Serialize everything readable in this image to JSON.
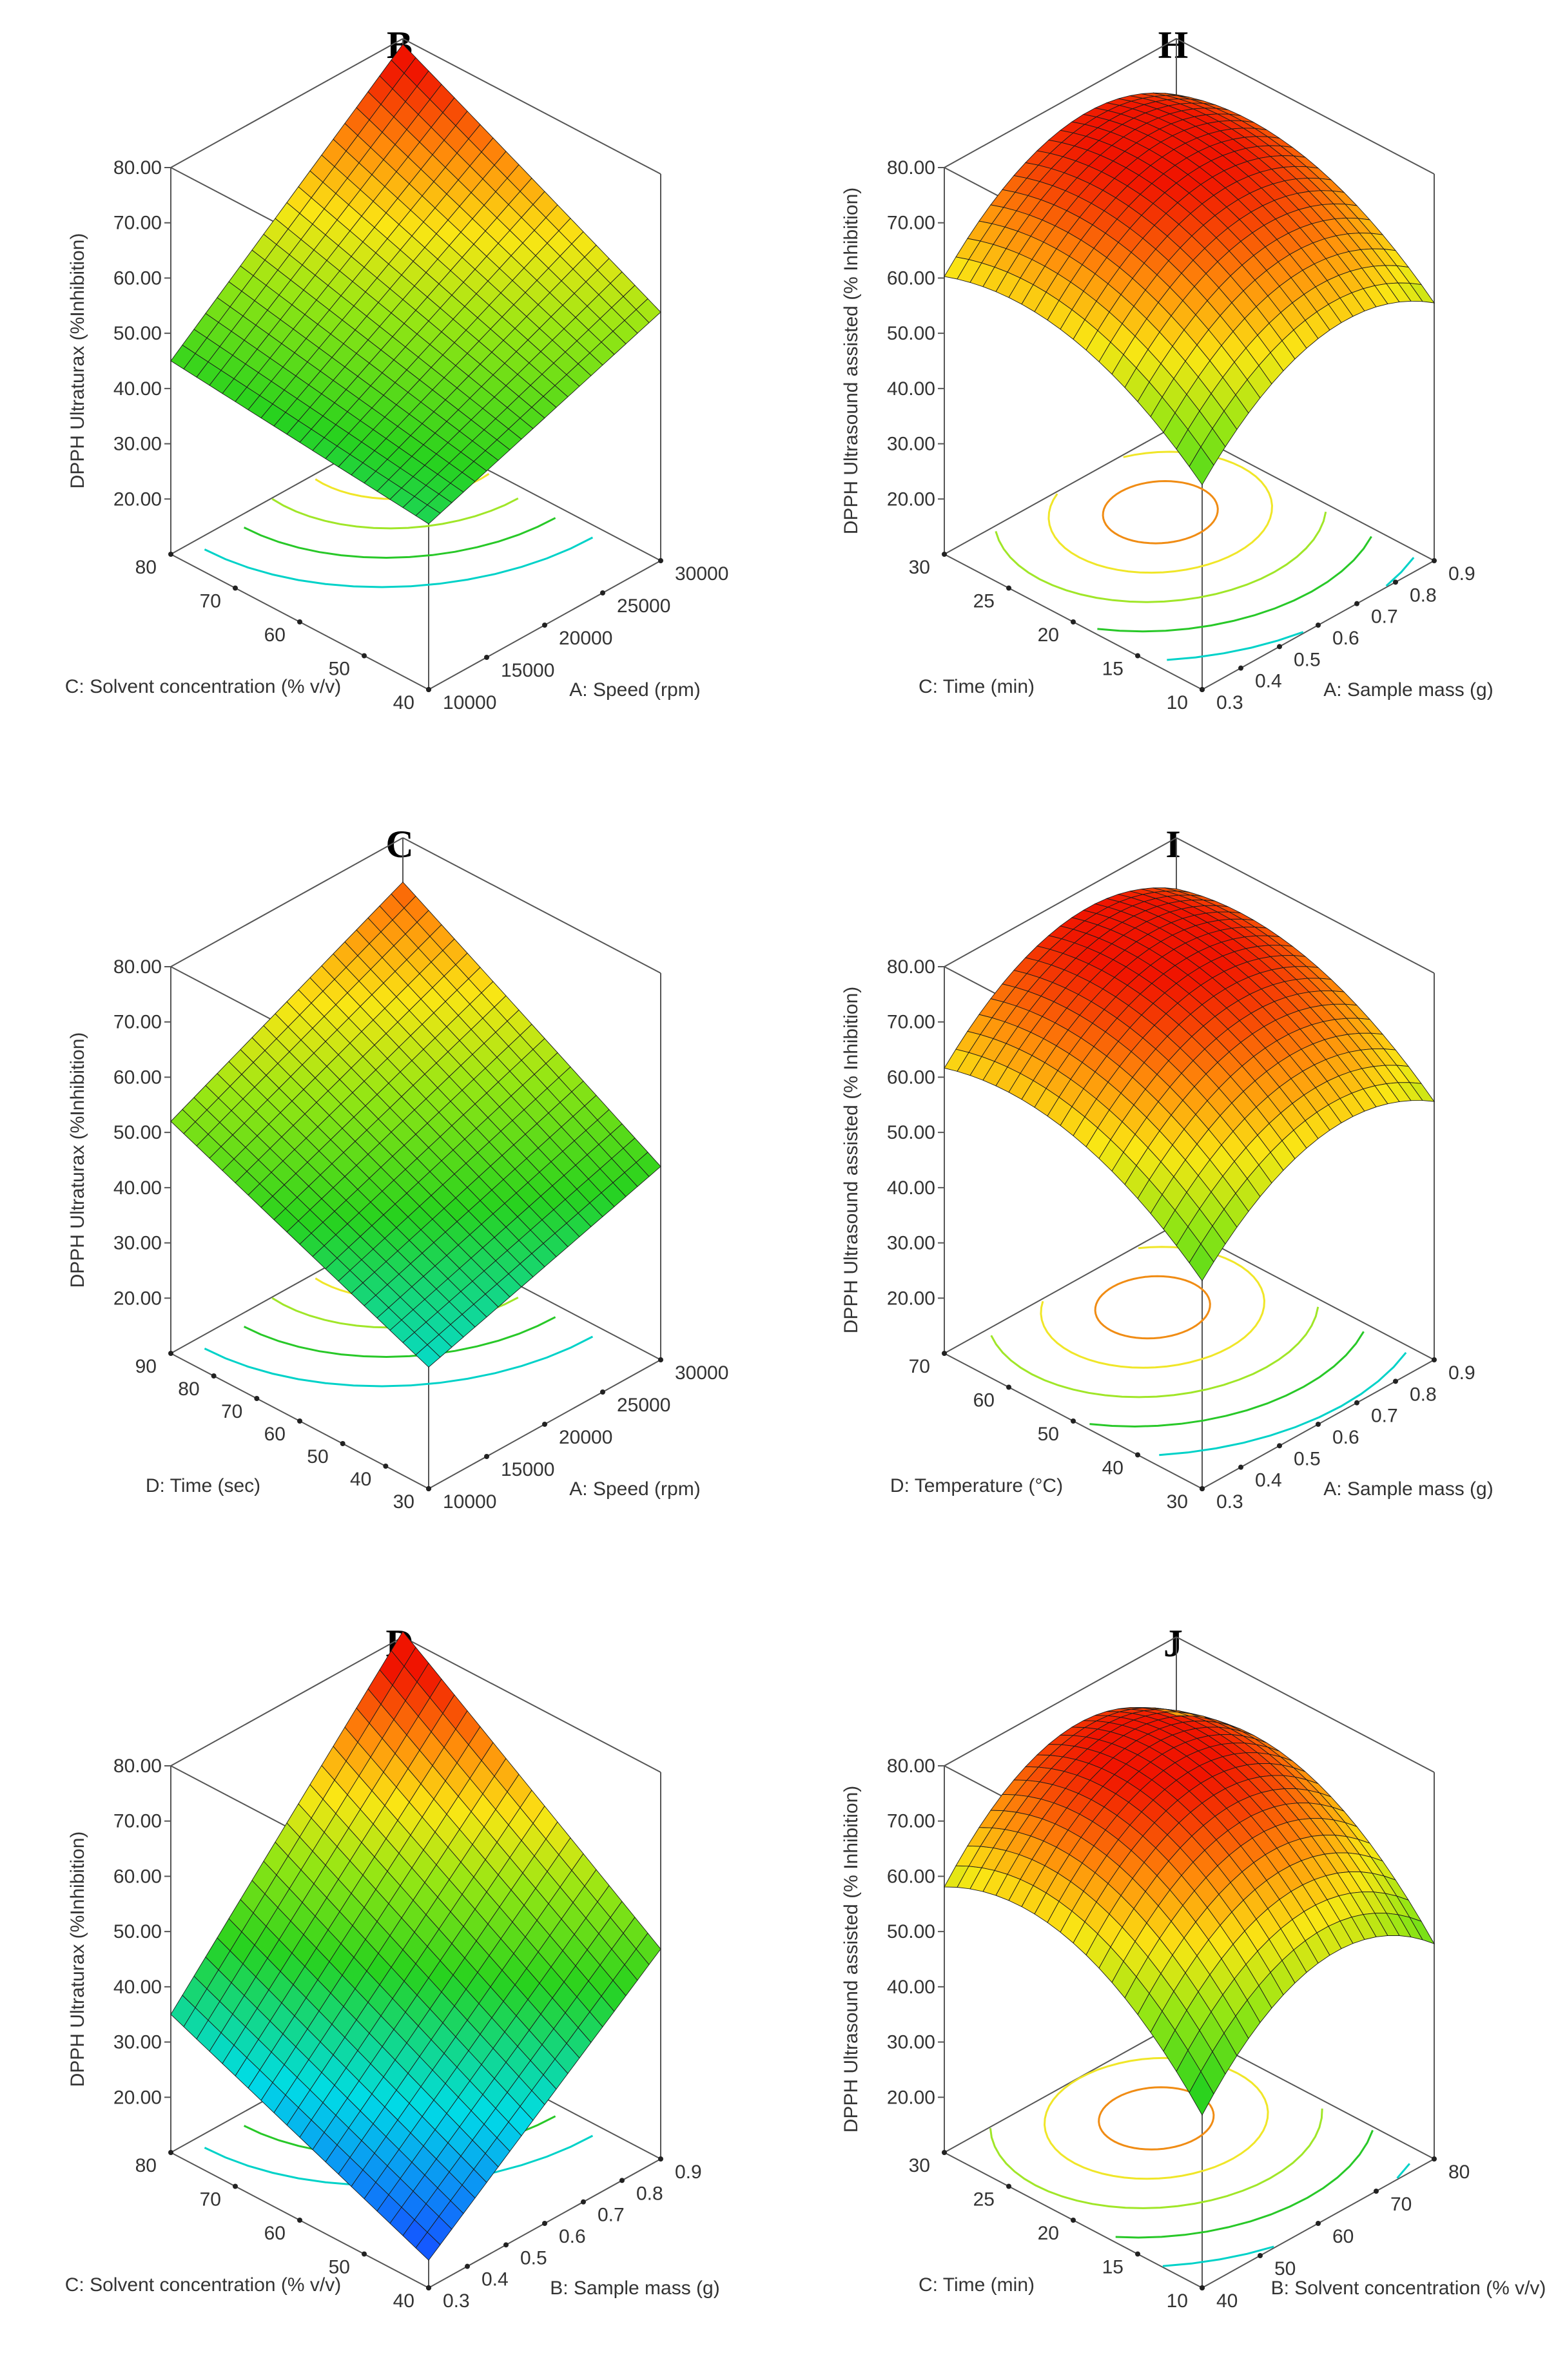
{
  "chart_data": [
    {
      "type": "surface3d",
      "panel": "B",
      "zlabel": "DPPH Ultraturax (%Inhibition)",
      "zticks": [
        "80.00",
        "70.00",
        "60.00",
        "50.00",
        "40.00",
        "30.00",
        "20.00"
      ],
      "xlabel": "A: Speed (rpm)",
      "xticks": [
        "10000",
        "15000",
        "20000",
        "25000",
        "30000"
      ],
      "ylabel": "C: Solvent concentration (% v/v)",
      "yticks": [
        "40",
        "50",
        "60",
        "70",
        "80"
      ],
      "surface": {
        "kind": "plane",
        "corner_values": {
          "x_min_y_min": 40,
          "x_max_y_min": 55,
          "x_min_y_max": 45,
          "x_max_y_max": 75
        },
        "curvature": 4
      },
      "zrange": [
        10,
        80
      ]
    },
    {
      "type": "surface3d",
      "panel": "H",
      "zlabel": "DPPH Ultrasound assisted (% Inhibition)",
      "zticks": [
        "80.00",
        "70.00",
        "60.00",
        "50.00",
        "40.00",
        "30.00",
        "20.00"
      ],
      "xlabel": "A: Sample mass (g)",
      "xticks": [
        "0.3",
        "0.4",
        "0.5",
        "0.6",
        "0.7",
        "0.8",
        "0.9"
      ],
      "ylabel": "C: Time (min)",
      "yticks": [
        "10",
        "15",
        "20",
        "25",
        "30"
      ],
      "surface": {
        "kind": "quadratic",
        "peak": 78,
        "peak_at": [
          0.62,
          0.72
        ],
        "falloff_x": 40,
        "falloff_y": 30
      },
      "zrange": [
        10,
        80
      ]
    },
    {
      "type": "surface3d",
      "panel": "C",
      "zlabel": "DPPH Ultraturax (%Inhibition)",
      "zticks": [
        "80.00",
        "70.00",
        "60.00",
        "50.00",
        "40.00",
        "30.00",
        "20.00"
      ],
      "xlabel": "A: Speed (rpm)",
      "xticks": [
        "10000",
        "15000",
        "20000",
        "25000",
        "30000"
      ],
      "ylabel": "D: Time (sec)",
      "yticks": [
        "30",
        "40",
        "50",
        "60",
        "70",
        "80",
        "90"
      ],
      "surface": {
        "kind": "plane",
        "corner_values": {
          "x_min_y_min": 32,
          "x_max_y_min": 45,
          "x_min_y_max": 52,
          "x_max_y_max": 72
        },
        "curvature": 0
      },
      "zrange": [
        10,
        80
      ]
    },
    {
      "type": "surface3d",
      "panel": "I",
      "zlabel": "DPPH Ultrasound assisted (% Inhibition)",
      "zticks": [
        "80.00",
        "70.00",
        "60.00",
        "50.00",
        "40.00",
        "30.00",
        "20.00"
      ],
      "xlabel": "A: Sample mass (g)",
      "xticks": [
        "0.3",
        "0.4",
        "0.5",
        "0.6",
        "0.7",
        "0.8",
        "0.9"
      ],
      "ylabel": "D: Temperature (°C)",
      "yticks": [
        "30",
        "40",
        "50",
        "60",
        "70"
      ],
      "surface": {
        "kind": "quadratic",
        "peak": 78,
        "peak_at": [
          0.62,
          0.75
        ],
        "falloff_x": 38,
        "falloff_y": 28
      },
      "zrange": [
        10,
        80
      ]
    },
    {
      "type": "surface3d",
      "panel": "D",
      "zlabel": "DPPH Ultraturax (%Inhibition)",
      "zticks": [
        "80.00",
        "70.00",
        "60.00",
        "50.00",
        "40.00",
        "30.00",
        "20.00"
      ],
      "xlabel": "B: Sample mass (g)",
      "xticks": [
        "0.3",
        "0.4",
        "0.5",
        "0.6",
        "0.7",
        "0.8",
        "0.9"
      ],
      "ylabel": "C: Solvent concentration (% v/v)",
      "yticks": [
        "40",
        "50",
        "60",
        "70",
        "80"
      ],
      "surface": {
        "kind": "plane",
        "corner_values": {
          "x_min_y_min": 15,
          "x_max_y_min": 48,
          "x_min_y_max": 35,
          "x_max_y_max": 75
        },
        "curvature": 6
      },
      "zrange": [
        10,
        80
      ]
    },
    {
      "type": "surface3d",
      "panel": "J",
      "zlabel": "DPPH Ultrasound assisted (% Inhibition)",
      "zticks": [
        "80.00",
        "70.00",
        "60.00",
        "50.00",
        "40.00",
        "30.00",
        "20.00"
      ],
      "xlabel": "B: Solvent concentration (% v/v)",
      "xticks": [
        "40",
        "50",
        "60",
        "70",
        "80"
      ],
      "ylabel": "C: Time (min)",
      "yticks": [
        "10",
        "15",
        "20",
        "25",
        "30"
      ],
      "surface": {
        "kind": "quadratic",
        "peak": 78,
        "peak_at": [
          0.58,
          0.7
        ],
        "falloff_x": 48,
        "falloff_y": 42
      },
      "zrange": [
        10,
        80
      ]
    }
  ]
}
